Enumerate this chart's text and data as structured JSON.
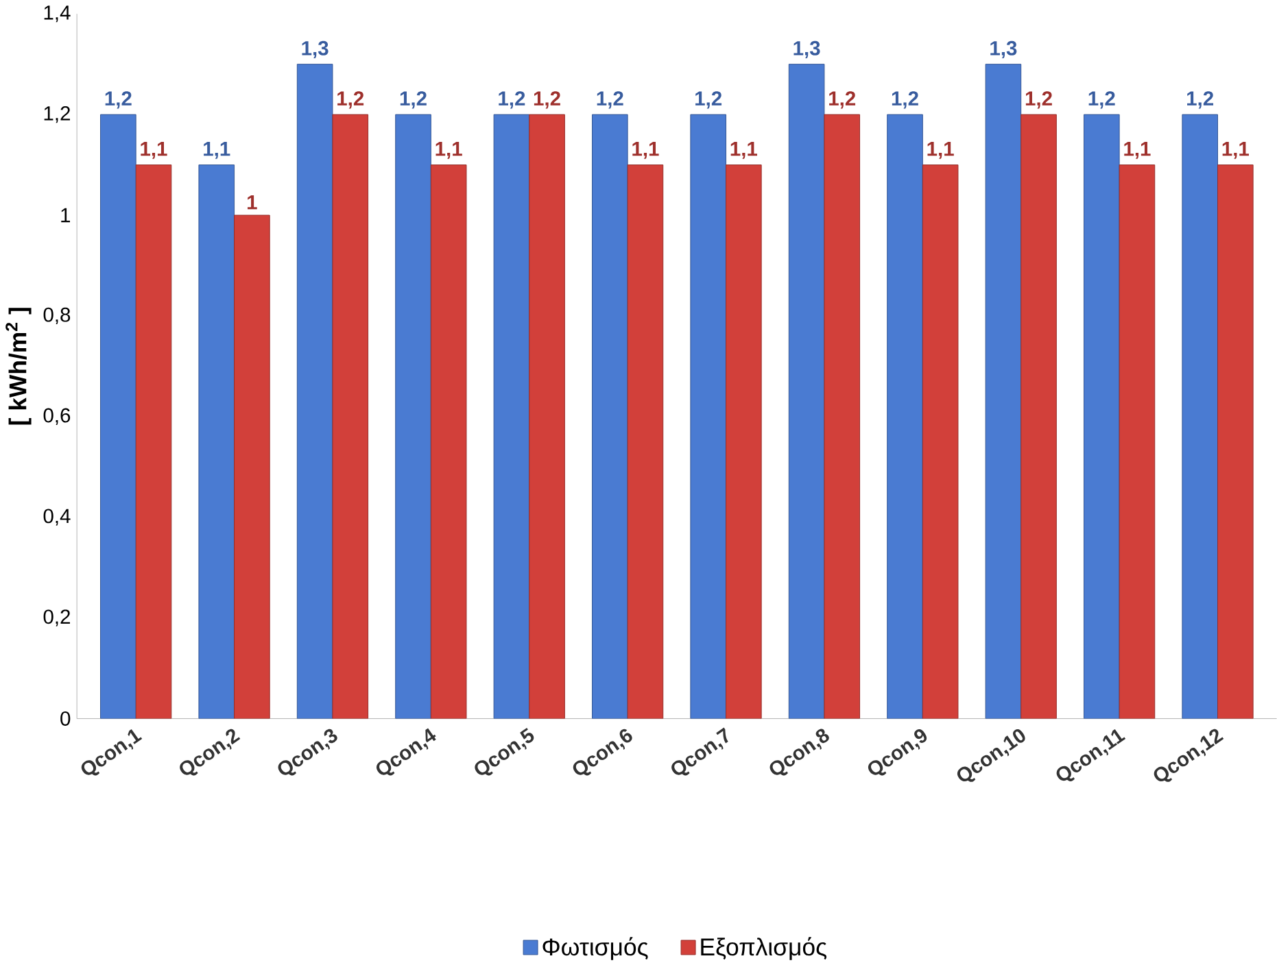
{
  "chart_data": {
    "type": "bar",
    "ylabel": "[ kWh/m$^{2}$ ]",
    "categories": [
      "Qcon,1",
      "Qcon,2",
      "Qcon,3",
      "Qcon,4",
      "Qcon,5",
      "Qcon,6",
      "Qcon,7",
      "Qcon,8",
      "Qcon,9",
      "Qcon,10",
      "Qcon,11",
      "Qcon,12"
    ],
    "series": [
      {
        "name": "Φωτισμός",
        "color": "#4a7bd2",
        "values": [
          1.2,
          1.1,
          1.3,
          1.2,
          1.2,
          1.2,
          1.2,
          1.3,
          1.2,
          1.3,
          1.2,
          1.2
        ],
        "value_labels": [
          "1,2",
          "1,1",
          "1,3",
          "1,2",
          "1,2",
          "1,2",
          "1,2",
          "1,3",
          "1,2",
          "1,3",
          "1,2",
          "1,2"
        ]
      },
      {
        "name": "Εξοπλισμός",
        "color": "#d2403a",
        "values": [
          1.1,
          1,
          1.2,
          1.1,
          1.2,
          1.1,
          1.1,
          1.2,
          1.1,
          1.2,
          1.1,
          1.1
        ],
        "value_labels": [
          "1,1",
          "1",
          "1,2",
          "1,1",
          "1,2",
          "1,1",
          "1,1",
          "1,2",
          "1,1",
          "1,2",
          "1,1",
          "1,1"
        ]
      }
    ],
    "ylim": [
      0,
      1.4
    ],
    "yticks": [
      {
        "value": 0,
        "label": "0"
      },
      {
        "value": 0.2,
        "label": "0,2"
      },
      {
        "value": 0.4,
        "label": "0,4"
      },
      {
        "value": 0.6,
        "label": "0,6"
      },
      {
        "value": 0.8,
        "label": "0,8"
      },
      {
        "value": 1,
        "label": "1"
      },
      {
        "value": 1.2,
        "label": "1,2"
      },
      {
        "value": 1.4,
        "label": "1,4"
      }
    ],
    "grid": false,
    "legend": "bottom"
  }
}
